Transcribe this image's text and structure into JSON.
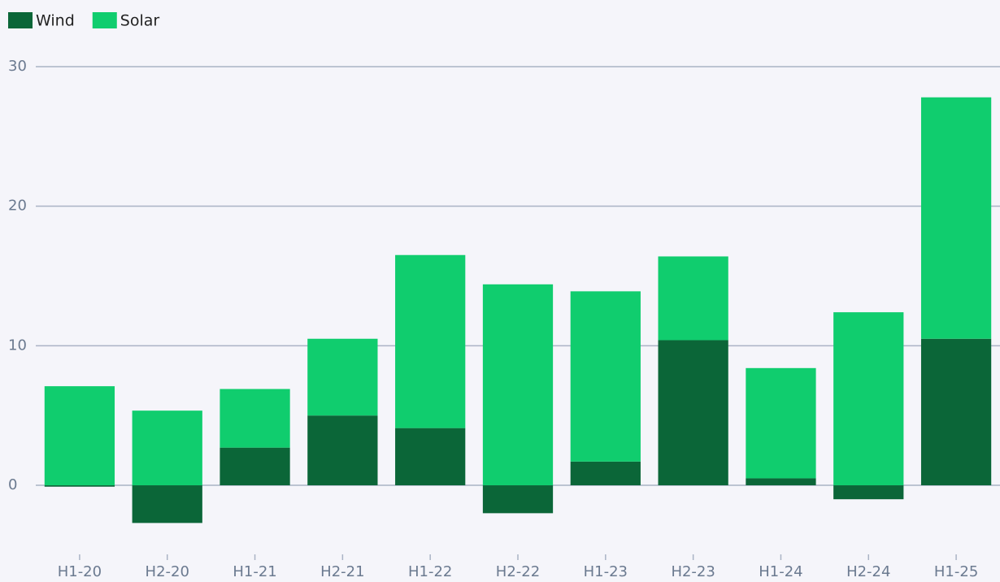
{
  "chart_data": {
    "type": "stacked_bar",
    "categories": [
      "H1-20",
      "H2-20",
      "H1-21",
      "H2-21",
      "H1-22",
      "H2-22",
      "H1-23",
      "H2-23",
      "H1-24",
      "H2-24",
      "H1-25"
    ],
    "series": [
      {
        "name": "Wind",
        "color": "#0b6638",
        "values": [
          -0.1,
          -2.7,
          2.7,
          5.0,
          4.1,
          -2.0,
          1.7,
          10.4,
          0.5,
          -1.0,
          10.5
        ]
      },
      {
        "name": "Solar",
        "color": "#10cd6e",
        "values": [
          7.1,
          5.35,
          4.2,
          5.5,
          12.4,
          14.4,
          12.2,
          6.0,
          7.9,
          12.4,
          17.3
        ]
      }
    ],
    "ylim": [
      -4,
      31
    ],
    "yticks": [
      0,
      10,
      20,
      30
    ],
    "grid": true,
    "legend": "top-left"
  }
}
